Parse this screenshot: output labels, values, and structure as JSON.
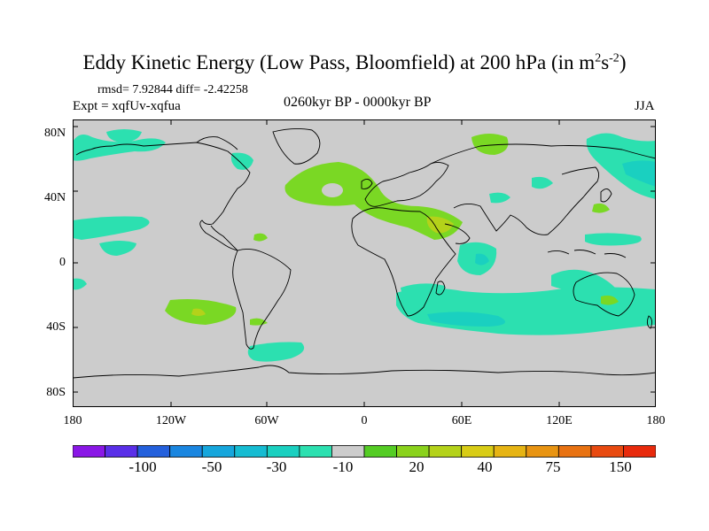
{
  "title_main": "Eddy Kinetic Energy (Low Pass, Bloomfield) at 200 hPa (in m",
  "title_sup1": "2",
  "title_mid": "s",
  "title_sup2": "-2",
  "title_end": ")",
  "stats": "rmsd= 7.92844  diff= -2.42258",
  "experiment": "Expt = xqfUv-xqfua",
  "period": "0260kyr BP - 0000kyr BP",
  "season": "JJA",
  "lat_ticks": [
    "80N",
    "40N",
    "0",
    "40S",
    "80S"
  ],
  "lon_ticks": [
    "180",
    "120W",
    "60W",
    "0",
    "60E",
    "120E",
    "180"
  ],
  "colorbar_labels": [
    "-100",
    "-50",
    "-30",
    "-10",
    "20",
    "40",
    "75",
    "150"
  ],
  "colorbar_colors": [
    "#8a17e6",
    "#5a2fe8",
    "#2460dc",
    "#1a86e0",
    "#16a6dc",
    "#16bcd2",
    "#1ad0c0",
    "#2ce0b0",
    "#cccccc",
    "#54cc24",
    "#8ad21c",
    "#b4d21a",
    "#d8cc16",
    "#e6b414",
    "#e89412",
    "#e87212",
    "#e84a10",
    "#e82a0c"
  ],
  "colors": {
    "land_background": "#cccccc",
    "neg_light": "#2ce0b0",
    "neg_mid": "#1ad0c0",
    "neg_dark": "#16a6dc",
    "pos_light": "#7ad824",
    "pos_mid": "#54cc24",
    "pos_high": "#b4d21a"
  }
}
